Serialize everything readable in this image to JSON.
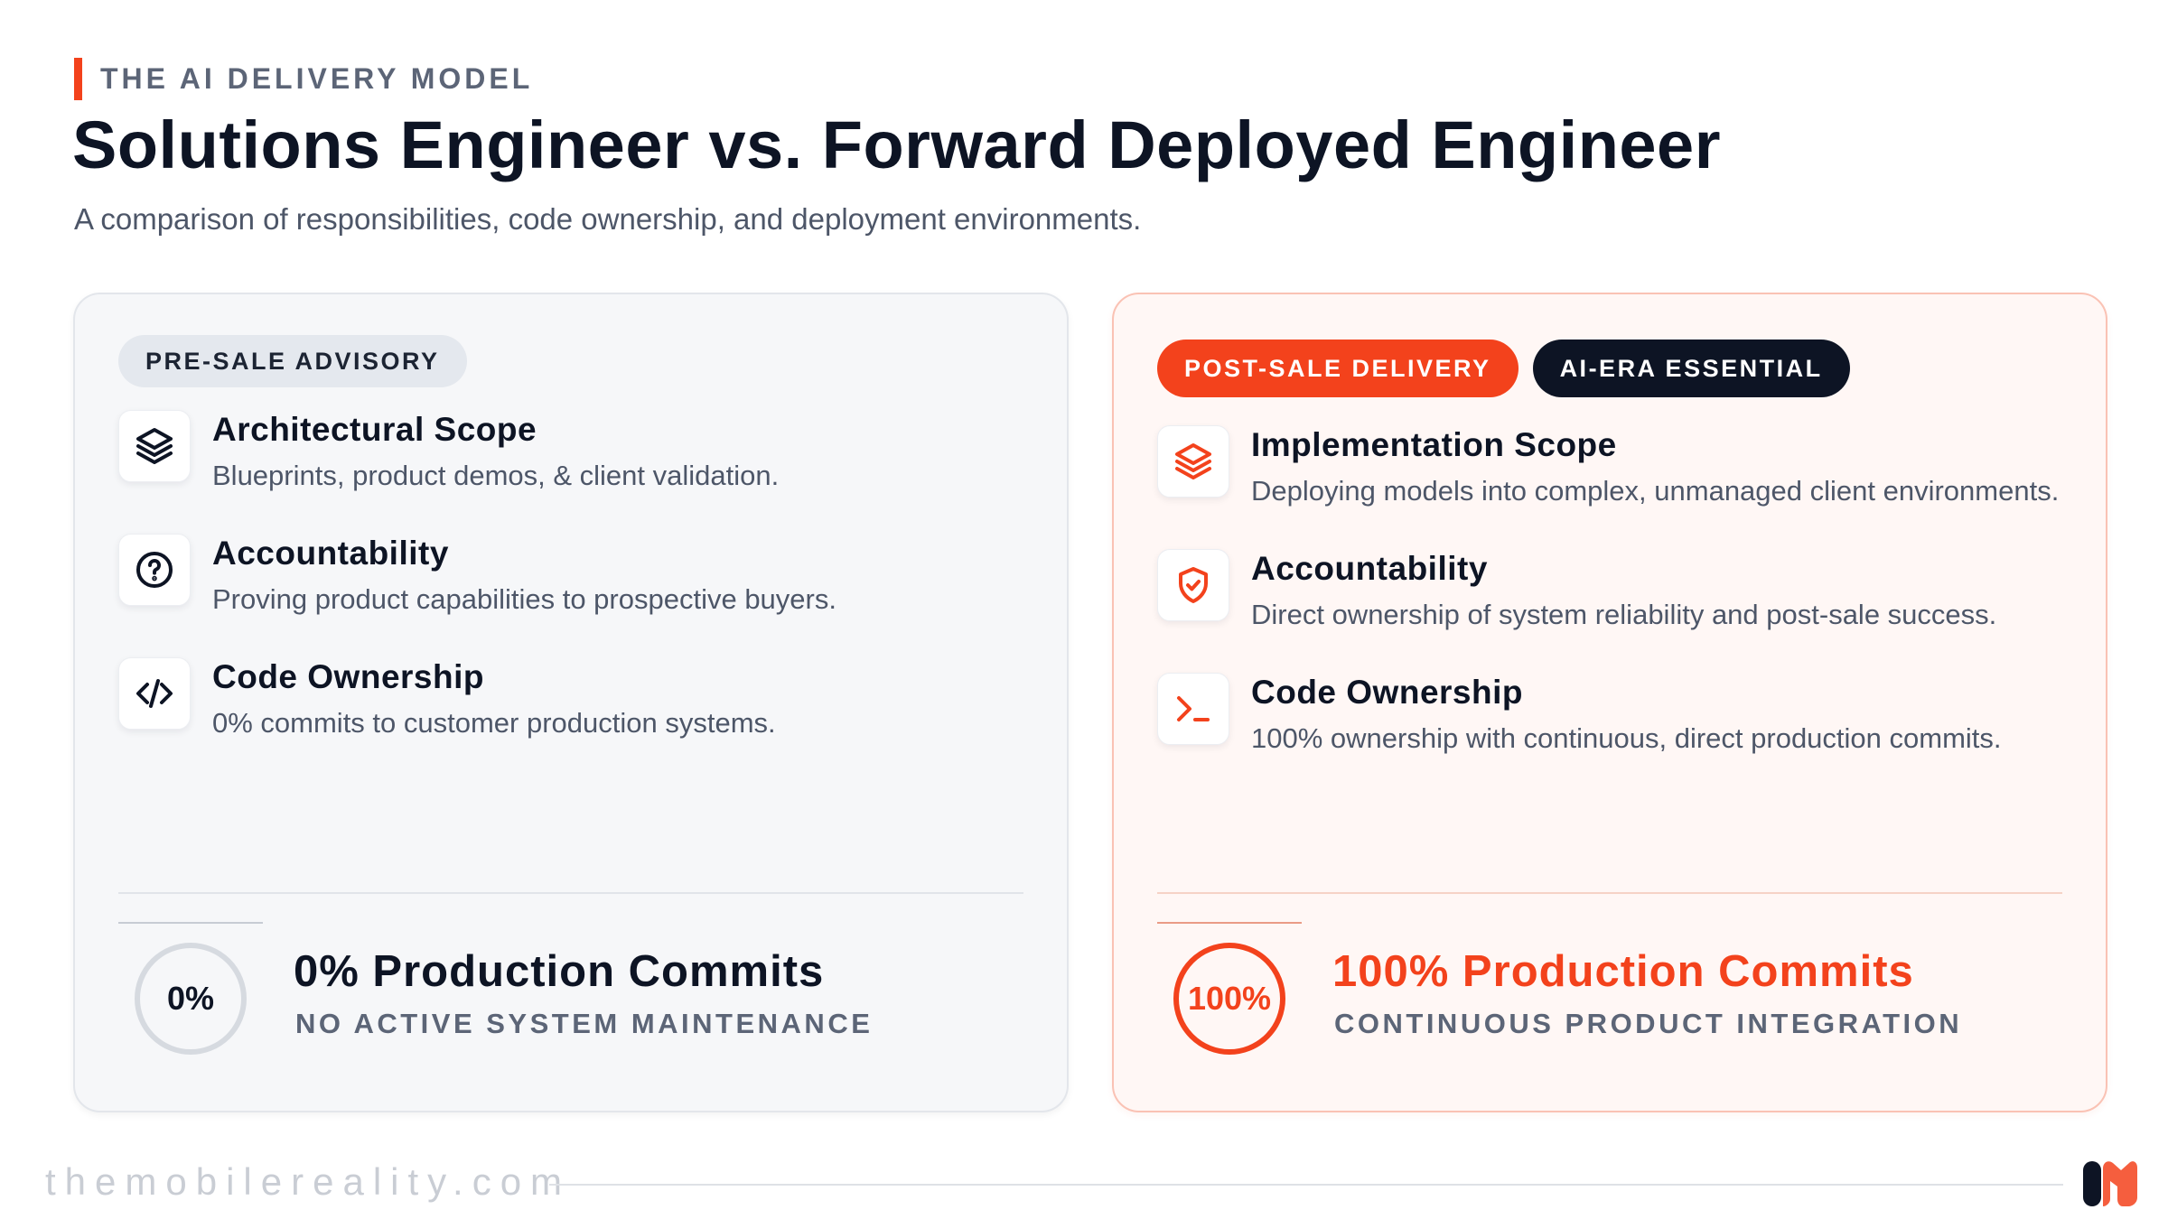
{
  "header": {
    "eyebrow": "THE AI DELIVERY MODEL",
    "title": "Solutions Engineer vs. Forward Deployed Engineer",
    "subtitle": "A comparison of responsibilities, code ownership, and deployment environments."
  },
  "left_card": {
    "badges": [
      "PRE-SALE ADVISORY"
    ],
    "items": [
      {
        "icon": "layers-icon",
        "title": "Architectural Scope",
        "description": "Blueprints, product demos, & client validation."
      },
      {
        "icon": "question-circle-icon",
        "title": "Accountability",
        "description": "Proving product capabilities to prospective buyers."
      },
      {
        "icon": "code-icon",
        "title": "Code Ownership",
        "description": "0% commits to customer production systems."
      }
    ],
    "stat": {
      "value": "0%",
      "title": "0% Production Commits",
      "subtitle": "NO ACTIVE SYSTEM MAINTENANCE"
    }
  },
  "right_card": {
    "badges": [
      "POST-SALE DELIVERY",
      "AI-ERA ESSENTIAL"
    ],
    "items": [
      {
        "icon": "layers-icon",
        "title": "Implementation Scope",
        "description": "Deploying models into complex, unmanaged client environments."
      },
      {
        "icon": "shield-check-icon",
        "title": "Accountability",
        "description": "Direct ownership of system reliability and post-sale success."
      },
      {
        "icon": "terminal-icon",
        "title": "Code Ownership",
        "description": "100% ownership with continuous, direct production commits."
      }
    ],
    "stat": {
      "value": "100%",
      "title": "100% Production Commits",
      "subtitle": "CONTINUOUS PRODUCT INTEGRATION"
    }
  },
  "footer": {
    "url": "themobilereality.com",
    "logo_icon": "mobile-reality-logo-icon"
  },
  "colors": {
    "accent": "#f3421c",
    "navy": "#0d1424",
    "muted": "#5c6577",
    "left_card_bg": "#f6f7f9",
    "right_card_bg": "#fff7f5"
  }
}
